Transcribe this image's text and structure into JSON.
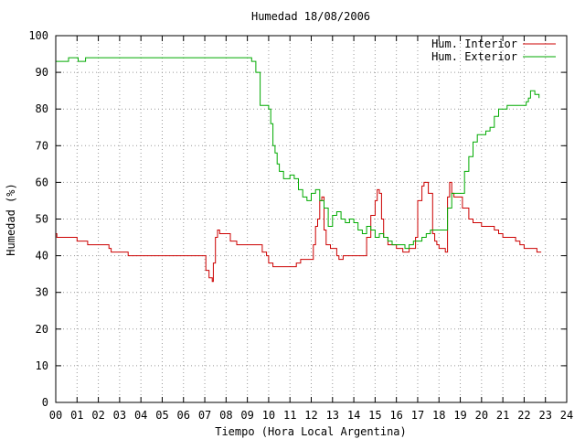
{
  "chart_data": {
    "type": "line",
    "title": "Humedad 18/08/2006",
    "xlabel": "Tiempo (Hora Local Argentina)",
    "ylabel": "Humedad (%)",
    "xlim": [
      0,
      24
    ],
    "ylim": [
      0,
      100
    ],
    "x_ticks": [
      "00",
      "01",
      "02",
      "03",
      "04",
      "05",
      "06",
      "07",
      "08",
      "09",
      "10",
      "11",
      "12",
      "13",
      "14",
      "15",
      "16",
      "17",
      "18",
      "19",
      "20",
      "21",
      "22",
      "23",
      "24"
    ],
    "y_ticks": [
      "0",
      "10",
      "20",
      "30",
      "40",
      "50",
      "60",
      "70",
      "80",
      "90",
      "100"
    ],
    "grid": true,
    "legend_position": "top-right",
    "series": [
      {
        "name": "Hum. Interior",
        "color": "#cc0000",
        "points": [
          [
            0.0,
            46
          ],
          [
            0.05,
            45
          ],
          [
            0.6,
            45
          ],
          [
            1.0,
            44
          ],
          [
            1.4,
            44
          ],
          [
            1.5,
            43
          ],
          [
            2.0,
            43
          ],
          [
            2.5,
            42
          ],
          [
            2.6,
            41
          ],
          [
            3.1,
            41
          ],
          [
            3.4,
            40
          ],
          [
            4.0,
            40
          ],
          [
            5.0,
            40
          ],
          [
            6.0,
            40
          ],
          [
            7.0,
            40
          ],
          [
            7.05,
            36
          ],
          [
            7.2,
            34
          ],
          [
            7.35,
            33
          ],
          [
            7.4,
            38
          ],
          [
            7.5,
            45
          ],
          [
            7.6,
            47
          ],
          [
            7.7,
            46
          ],
          [
            8.0,
            46
          ],
          [
            8.2,
            44
          ],
          [
            8.5,
            43
          ],
          [
            9.0,
            43
          ],
          [
            9.6,
            43
          ],
          [
            9.7,
            41
          ],
          [
            9.9,
            40
          ],
          [
            10.0,
            38
          ],
          [
            10.2,
            37
          ],
          [
            10.6,
            37
          ],
          [
            11.0,
            37
          ],
          [
            11.3,
            38
          ],
          [
            11.5,
            39
          ],
          [
            11.8,
            39
          ],
          [
            12.0,
            39
          ],
          [
            12.1,
            43
          ],
          [
            12.2,
            48
          ],
          [
            12.3,
            50
          ],
          [
            12.4,
            55
          ],
          [
            12.5,
            56
          ],
          [
            12.6,
            47
          ],
          [
            12.7,
            43
          ],
          [
            12.9,
            42
          ],
          [
            13.0,
            42
          ],
          [
            13.2,
            40
          ],
          [
            13.3,
            39
          ],
          [
            13.5,
            40
          ],
          [
            14.0,
            40
          ],
          [
            14.5,
            40
          ],
          [
            14.6,
            45
          ],
          [
            14.8,
            51
          ],
          [
            15.0,
            55
          ],
          [
            15.1,
            58
          ],
          [
            15.2,
            57
          ],
          [
            15.3,
            50
          ],
          [
            15.4,
            45
          ],
          [
            15.6,
            43
          ],
          [
            16.0,
            42
          ],
          [
            16.3,
            41
          ],
          [
            16.6,
            42
          ],
          [
            16.9,
            45
          ],
          [
            17.0,
            55
          ],
          [
            17.2,
            59
          ],
          [
            17.3,
            60
          ],
          [
            17.5,
            57
          ],
          [
            17.7,
            46
          ],
          [
            17.8,
            44
          ],
          [
            17.9,
            43
          ],
          [
            18.0,
            42
          ],
          [
            18.2,
            42
          ],
          [
            18.3,
            41
          ],
          [
            18.4,
            56
          ],
          [
            18.5,
            60
          ],
          [
            18.6,
            57
          ],
          [
            18.7,
            56
          ],
          [
            19.0,
            56
          ],
          [
            19.1,
            53
          ],
          [
            19.4,
            50
          ],
          [
            19.6,
            49
          ],
          [
            20.0,
            48
          ],
          [
            20.6,
            47
          ],
          [
            20.8,
            46
          ],
          [
            21.0,
            45
          ],
          [
            21.6,
            44
          ],
          [
            21.8,
            43
          ],
          [
            22.0,
            42
          ],
          [
            22.5,
            42
          ],
          [
            22.6,
            41
          ],
          [
            22.8,
            41
          ]
        ]
      },
      {
        "name": "Hum. Exterior",
        "color": "#00aa00",
        "points": [
          [
            0.0,
            93
          ],
          [
            0.55,
            93
          ],
          [
            0.6,
            94
          ],
          [
            1.0,
            94
          ],
          [
            1.05,
            93
          ],
          [
            1.3,
            93
          ],
          [
            1.4,
            94
          ],
          [
            2.0,
            94
          ],
          [
            4.0,
            94
          ],
          [
            6.0,
            94
          ],
          [
            8.0,
            94
          ],
          [
            9.0,
            94
          ],
          [
            9.2,
            93
          ],
          [
            9.3,
            93
          ],
          [
            9.4,
            90
          ],
          [
            9.6,
            81
          ],
          [
            10.0,
            80
          ],
          [
            10.1,
            76
          ],
          [
            10.2,
            70
          ],
          [
            10.3,
            68
          ],
          [
            10.4,
            65
          ],
          [
            10.5,
            63
          ],
          [
            10.7,
            61
          ],
          [
            11.0,
            62
          ],
          [
            11.2,
            61
          ],
          [
            11.4,
            58
          ],
          [
            11.6,
            56
          ],
          [
            11.8,
            55
          ],
          [
            12.0,
            57
          ],
          [
            12.2,
            58
          ],
          [
            12.4,
            55
          ],
          [
            12.6,
            53
          ],
          [
            12.8,
            48
          ],
          [
            13.0,
            51
          ],
          [
            13.2,
            52
          ],
          [
            13.4,
            50
          ],
          [
            13.6,
            49
          ],
          [
            13.8,
            50
          ],
          [
            14.0,
            49
          ],
          [
            14.2,
            47
          ],
          [
            14.4,
            46
          ],
          [
            14.6,
            48
          ],
          [
            14.8,
            47
          ],
          [
            15.0,
            45
          ],
          [
            15.2,
            46
          ],
          [
            15.4,
            45
          ],
          [
            15.6,
            44
          ],
          [
            15.8,
            43
          ],
          [
            16.0,
            43
          ],
          [
            16.2,
            43
          ],
          [
            16.4,
            42
          ],
          [
            16.6,
            43
          ],
          [
            16.8,
            44
          ],
          [
            17.0,
            44
          ],
          [
            17.2,
            45
          ],
          [
            17.4,
            46
          ],
          [
            17.6,
            47
          ],
          [
            17.8,
            47
          ],
          [
            18.0,
            47
          ],
          [
            18.2,
            47
          ],
          [
            18.4,
            53
          ],
          [
            18.6,
            57
          ],
          [
            18.8,
            57
          ],
          [
            19.0,
            57
          ],
          [
            19.2,
            63
          ],
          [
            19.4,
            67
          ],
          [
            19.6,
            71
          ],
          [
            19.8,
            73
          ],
          [
            20.0,
            73
          ],
          [
            20.2,
            74
          ],
          [
            20.4,
            75
          ],
          [
            20.6,
            78
          ],
          [
            20.8,
            80
          ],
          [
            21.0,
            80
          ],
          [
            21.2,
            81
          ],
          [
            21.4,
            81
          ],
          [
            21.6,
            81
          ],
          [
            21.8,
            81
          ],
          [
            22.0,
            81
          ],
          [
            22.1,
            82
          ],
          [
            22.2,
            83
          ],
          [
            22.3,
            85
          ],
          [
            22.5,
            84
          ],
          [
            22.7,
            83
          ]
        ]
      }
    ]
  }
}
